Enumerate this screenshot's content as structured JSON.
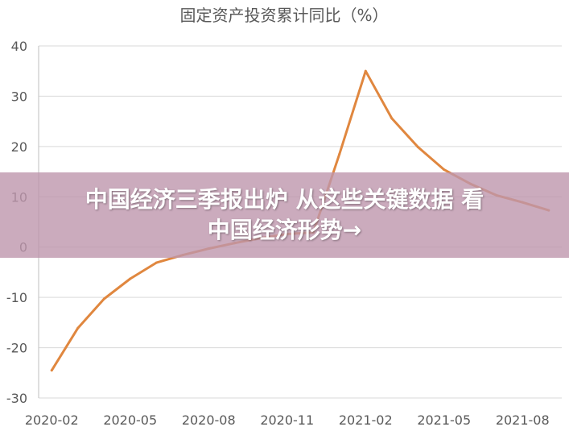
{
  "chart_data": {
    "type": "line",
    "title": "固定资产投资累计同比（%）",
    "xlabel": "",
    "ylabel": "",
    "ylim": [
      -30,
      40
    ],
    "yticks": [
      -30,
      -20,
      -10,
      0,
      10,
      20,
      30,
      40
    ],
    "grid": true,
    "legend": "none",
    "x": [
      "2020-02",
      "2020-03",
      "2020-04",
      "2020-05",
      "2020-06",
      "2020-07",
      "2020-08",
      "2020-09",
      "2020-10",
      "2020-11",
      "2020-12",
      "2021-01",
      "2021-02",
      "2021-03",
      "2021-04",
      "2021-05",
      "2021-06",
      "2021-07",
      "2021-08",
      "2021-09"
    ],
    "xtick_labels": [
      "2020-02",
      "2020-05",
      "2020-08",
      "2020-11",
      "2021-02",
      "2021-05",
      "2021-08"
    ],
    "series": [
      {
        "color": "#E0873F",
        "values": [
          -24.5,
          -16.1,
          -10.3,
          -6.3,
          -3.1,
          -1.6,
          -0.3,
          0.8,
          1.8,
          2.6,
          2.9,
          18.5,
          35.0,
          25.6,
          19.9,
          15.4,
          12.6,
          10.3,
          8.9,
          7.3
        ]
      }
    ]
  },
  "banner": {
    "line1": "中国经济三季报出炉 从这些关键数据 看",
    "line2": "中国经济形势→"
  }
}
